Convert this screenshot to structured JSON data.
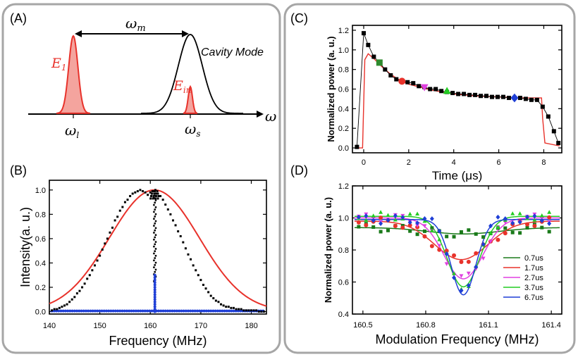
{
  "panels": {
    "A": {
      "label": "(A)",
      "omega_m": "ω",
      "omega_m_sub": "m",
      "cavity_mode": "Cavity Mode",
      "E1": "E",
      "E1_sub": "1",
      "Ein": "E",
      "Ein_sub": "in",
      "omega_l": "ω",
      "omega_l_sub": "l",
      "omega_s": "ω",
      "omega_s_sub": "s",
      "omega_axis": "ω"
    },
    "B": {
      "label": "(B)"
    },
    "C": {
      "label": "(C)"
    },
    "D": {
      "label": "(D)"
    }
  },
  "colors": {
    "red": "#e8322b",
    "black": "#000000",
    "blue": "#1f3fd6",
    "panel_border": "#a6a6a6"
  },
  "chart_data": [
    {
      "id": "B",
      "type": "scatter",
      "xlabel": "Frequency (MHz)",
      "ylabel": "Intensity(a. u.)",
      "xlim": [
        140,
        183
      ],
      "ylim": [
        -0.02,
        1.08
      ],
      "xticks": [
        140,
        150,
        160,
        170,
        180
      ],
      "yticks": [
        0.0,
        0.2,
        0.4,
        0.6,
        0.8,
        1.0
      ],
      "ytick_labels": [
        "0.0",
        "0.2",
        "0.4",
        "0.6",
        "0.8",
        "1.0"
      ],
      "series": [
        {
          "style": "black-points",
          "color": "#000000",
          "x": [
            140.5,
            141,
            141.5,
            142,
            142.5,
            143,
            143.5,
            144,
            144.5,
            145,
            145.5,
            146,
            146.5,
            147,
            147.5,
            148,
            148.5,
            149,
            149.5,
            150,
            150.5,
            151,
            151.5,
            152,
            152.5,
            153,
            153.5,
            154,
            154.5,
            155,
            155.5,
            156,
            156.5,
            157,
            157.5,
            158,
            158.5,
            159,
            159.5,
            160,
            160.5,
            161,
            161.5,
            162,
            162.5,
            163,
            163.5,
            164,
            164.5,
            165,
            165.5,
            166,
            166.5,
            167,
            167.5,
            168,
            168.5,
            169,
            169.5,
            170,
            170.5,
            171,
            171.5,
            172,
            172.5,
            173,
            173.5,
            174,
            174.5,
            175,
            175.5,
            176,
            176.5,
            177,
            177.5,
            178,
            178.5,
            179,
            179.5,
            180,
            180.5,
            181,
            181.5,
            182,
            182.5
          ],
          "y": [
            0.01,
            0.02,
            0.02,
            0.03,
            0.04,
            0.05,
            0.06,
            0.08,
            0.1,
            0.12,
            0.15,
            0.17,
            0.2,
            0.23,
            0.27,
            0.3,
            0.34,
            0.38,
            0.42,
            0.46,
            0.51,
            0.56,
            0.6,
            0.65,
            0.69,
            0.75,
            0.78,
            0.83,
            0.86,
            0.9,
            0.92,
            0.95,
            0.97,
            0.98,
            0.99,
            1.0,
            0.99,
            0.98,
            0.96,
            0.98,
            0.99,
            1.0,
            0.97,
            0.95,
            0.92,
            0.88,
            0.84,
            0.8,
            0.75,
            0.71,
            0.66,
            0.62,
            0.57,
            0.52,
            0.47,
            0.43,
            0.38,
            0.34,
            0.3,
            0.26,
            0.22,
            0.19,
            0.16,
            0.13,
            0.11,
            0.09,
            0.08,
            0.06,
            0.05,
            0.04,
            0.04,
            0.03,
            0.03,
            0.02,
            0.02,
            0.02,
            0.01,
            0.01,
            0.01,
            0.01,
            0.01,
            0.01,
            0.0,
            0.0,
            0.0
          ]
        },
        {
          "style": "red-fit-line",
          "color": "#e8322b",
          "center": 160.8,
          "fwhm": 21,
          "amplitude": 1.0
        },
        {
          "style": "center-spike",
          "color": "#000000",
          "center": 160.9,
          "height": 1.0
        },
        {
          "style": "blue-points",
          "color": "#1f3fd6",
          "center": 160.9,
          "height": 0.3
        }
      ]
    },
    {
      "id": "C",
      "type": "line",
      "xlabel": "Time (μs)",
      "ylabel": "Normalized power (a. u.)",
      "xlim": [
        -0.5,
        8.8
      ],
      "ylim": [
        -0.05,
        1.25
      ],
      "xticks": [
        0,
        2,
        4,
        6,
        8
      ],
      "yticks": [
        0.0,
        0.2,
        0.4,
        0.6,
        0.8,
        1.0,
        1.2
      ],
      "ytick_labels": [
        "0.0",
        "0.2",
        "0.4",
        "0.6",
        "0.8",
        "1.0",
        "1.2"
      ],
      "series": [
        {
          "style": "black-squares",
          "color": "#000000",
          "x": [
            -0.3,
            0.0,
            0.2,
            0.45,
            0.7,
            0.95,
            1.2,
            1.45,
            1.7,
            1.95,
            2.2,
            2.45,
            2.7,
            2.95,
            3.2,
            3.45,
            3.7,
            3.95,
            4.2,
            4.45,
            4.7,
            4.95,
            5.2,
            5.45,
            5.7,
            5.95,
            6.2,
            6.45,
            6.7,
            6.95,
            7.2,
            7.45,
            7.7,
            7.95,
            8.2,
            8.45,
            8.65
          ],
          "y": [
            0.01,
            1.17,
            1.05,
            0.93,
            0.87,
            0.8,
            0.74,
            0.7,
            0.68,
            0.67,
            0.66,
            0.63,
            0.62,
            0.6,
            0.6,
            0.58,
            0.57,
            0.56,
            0.55,
            0.55,
            0.54,
            0.54,
            0.53,
            0.53,
            0.52,
            0.52,
            0.52,
            0.51,
            0.51,
            0.51,
            0.5,
            0.49,
            0.49,
            0.42,
            0.32,
            0.17,
            0.05
          ]
        },
        {
          "style": "red-model-line",
          "color": "#e8322b",
          "x": [
            -0.3,
            -0.05,
            0.05,
            0.2,
            0.5,
            0.8,
            1.2,
            1.6,
            2.0,
            2.5,
            3.0,
            3.5,
            4.0,
            5.0,
            6.0,
            7.0,
            7.9,
            7.95,
            8.05,
            8.7
          ],
          "y": [
            0.0,
            0.0,
            0.9,
            0.96,
            0.9,
            0.83,
            0.75,
            0.69,
            0.65,
            0.62,
            0.59,
            0.57,
            0.55,
            0.53,
            0.52,
            0.51,
            0.51,
            0.3,
            0.05,
            0.02
          ]
        },
        {
          "style": "highlight",
          "color": "#2e8b2e",
          "marker": "square",
          "x": [
            0.7
          ],
          "y": [
            0.87
          ]
        },
        {
          "style": "highlight",
          "color": "#e8322b",
          "marker": "circle",
          "x": [
            1.7
          ],
          "y": [
            0.68
          ]
        },
        {
          "style": "highlight",
          "color": "#e040e0",
          "marker": "triangle-down",
          "x": [
            2.7
          ],
          "y": [
            0.62
          ]
        },
        {
          "style": "highlight",
          "color": "#22cc22",
          "marker": "triangle-up",
          "x": [
            3.7
          ],
          "y": [
            0.58
          ]
        },
        {
          "style": "highlight",
          "color": "#1f3fd6",
          "marker": "diamond",
          "x": [
            6.7
          ],
          "y": [
            0.51
          ]
        }
      ]
    },
    {
      "id": "D",
      "type": "scatter",
      "xlabel": "Modulation Frequency (MHz)",
      "ylabel": "Normalized power (a. u.)",
      "xlim": [
        160.45,
        161.45
      ],
      "ylim": [
        0.4,
        1.2
      ],
      "xticks": [
        160.5,
        160.8,
        161.1,
        161.4
      ],
      "yticks": [
        0.4,
        0.6,
        0.8,
        1.0,
        1.2
      ],
      "ytick_labels": [
        "0.4",
        "0.6",
        "0.8",
        "1.0",
        "1.2"
      ],
      "legend_position": "bottom-right",
      "series": [
        {
          "name": "0.7us",
          "color": "#1a7a1a",
          "marker": "square",
          "center": 160.98,
          "depth": 0.04,
          "width": 0.4,
          "base": 0.94
        },
        {
          "name": "1.7us",
          "color": "#e8322b",
          "marker": "circle",
          "center": 160.97,
          "depth": 0.24,
          "width": 0.3,
          "base": 0.98
        },
        {
          "name": "2.7us",
          "color": "#e040e0",
          "marker": "triangle-down",
          "center": 160.98,
          "depth": 0.38,
          "width": 0.22,
          "base": 1.0
        },
        {
          "name": "3.7us",
          "color": "#22cc22",
          "marker": "triangle-up",
          "center": 160.98,
          "depth": 0.44,
          "width": 0.18,
          "base": 1.01
        },
        {
          "name": "6.7us",
          "color": "#1f3fd6",
          "marker": "diamond",
          "center": 160.98,
          "depth": 0.47,
          "width": 0.14,
          "base": 0.99
        }
      ]
    }
  ]
}
